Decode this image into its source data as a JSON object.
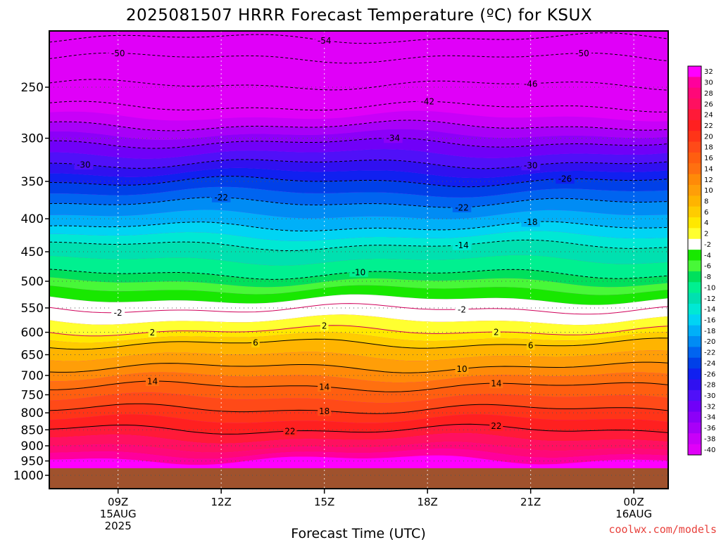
{
  "chart_data": {
    "type": "heatmap",
    "title": "2025081507 HRRR Forecast Temperature (ºC) for KSUX",
    "xlabel": "Forecast Time (UTC)",
    "ylabel": "",
    "x_ticks": [
      {
        "label": "09Z",
        "sub": [
          "15AUG",
          "2025"
        ],
        "hour": 9
      },
      {
        "label": "12Z",
        "sub": [],
        "hour": 12
      },
      {
        "label": "15Z",
        "sub": [],
        "hour": 15
      },
      {
        "label": "18Z",
        "sub": [],
        "hour": 18
      },
      {
        "label": "21Z",
        "sub": [],
        "hour": 21
      },
      {
        "label": "00Z",
        "sub": [
          "16AUG"
        ],
        "hour": 24
      }
    ],
    "xlim_hours": [
      7,
      25
    ],
    "y_ticks": [
      "250",
      "300",
      "350",
      "400",
      "450",
      "500",
      "550",
      "600",
      "650",
      "700",
      "750",
      "800",
      "850",
      "900",
      "950",
      "1000"
    ],
    "y_scale": "log-pressure",
    "ylim_hPa": [
      1000,
      200
    ],
    "surface_pressure_hPa": 975,
    "colorbar": {
      "labels": [
        "32",
        "30",
        "28",
        "26",
        "24",
        "22",
        "20",
        "18",
        "16",
        "14",
        "12",
        "10",
        "8",
        "6",
        "4",
        "2",
        "-2",
        "-4",
        "-6",
        "-8",
        "-10",
        "-12",
        "-14",
        "-16",
        "-18",
        "-20",
        "-22",
        "-24",
        "-26",
        "-28",
        "-30",
        "-32",
        "-34",
        "-36",
        "-38",
        "-40"
      ],
      "colors": [
        "#ff00ff",
        "#ff009c",
        "#ff0878",
        "#ff1060",
        "#ff1a38",
        "#ff2020",
        "#ff3418",
        "#ff4a18",
        "#ff5e10",
        "#ff7010",
        "#ff8a08",
        "#ff9e08",
        "#ffb400",
        "#ffcc00",
        "#ffe800",
        "#ffff30",
        "#ffffff",
        "#18e800",
        "#48f838",
        "#00e05c",
        "#00f090",
        "#00e0b0",
        "#00e8d4",
        "#00d4f4",
        "#00b0f8",
        "#008cf4",
        "#0064f0",
        "#0040e8",
        "#1020f0",
        "#3010f0",
        "#5010f8",
        "#7000f8",
        "#8c00f8",
        "#a800f8",
        "#c800f8",
        "#e000f8"
      ]
    },
    "contours": [
      {
        "temp": -54,
        "labels": [
          {
            "hour": 15,
            "text": "-54"
          }
        ]
      },
      {
        "temp": -50,
        "labels": [
          {
            "hour": 9,
            "text": "-50"
          },
          {
            "hour": 22.5,
            "text": "-50"
          }
        ]
      },
      {
        "temp": -46,
        "labels": [
          {
            "hour": 21,
            "text": "-46"
          }
        ]
      },
      {
        "temp": -42,
        "labels": [
          {
            "hour": 18,
            "text": "-42"
          }
        ]
      },
      {
        "temp": -38,
        "labels": []
      },
      {
        "temp": -34,
        "labels": [
          {
            "hour": 17,
            "text": "-34"
          }
        ]
      },
      {
        "temp": -30,
        "labels": [
          {
            "hour": 8,
            "text": "-30"
          },
          {
            "hour": 21,
            "text": "-30"
          }
        ]
      },
      {
        "temp": -26,
        "labels": [
          {
            "hour": 22,
            "text": "-26"
          }
        ]
      },
      {
        "temp": -22,
        "labels": [
          {
            "hour": 12,
            "text": "-22"
          },
          {
            "hour": 19,
            "text": "-22"
          }
        ]
      },
      {
        "temp": -18,
        "labels": [
          {
            "hour": 21,
            "text": "-18"
          }
        ]
      },
      {
        "temp": -14,
        "labels": [
          {
            "hour": 19,
            "text": "-14"
          }
        ]
      },
      {
        "temp": -10,
        "labels": [
          {
            "hour": 16,
            "text": "-10"
          }
        ]
      },
      {
        "temp": -2,
        "labels": [
          {
            "hour": 9,
            "text": "-2"
          },
          {
            "hour": 19,
            "text": "-2"
          }
        ]
      },
      {
        "temp": 2,
        "labels": [
          {
            "hour": 10,
            "text": "2"
          },
          {
            "hour": 15,
            "text": "2"
          },
          {
            "hour": 20,
            "text": "2"
          }
        ]
      },
      {
        "temp": 6,
        "labels": [
          {
            "hour": 13,
            "text": "6"
          },
          {
            "hour": 21,
            "text": "6"
          }
        ]
      },
      {
        "temp": 10,
        "labels": [
          {
            "hour": 19,
            "text": "10"
          }
        ]
      },
      {
        "temp": 14,
        "labels": [
          {
            "hour": 10,
            "text": "14"
          },
          {
            "hour": 15,
            "text": "14"
          },
          {
            "hour": 20,
            "text": "14"
          }
        ]
      },
      {
        "temp": 18,
        "labels": [
          {
            "hour": 15,
            "text": "18"
          }
        ]
      },
      {
        "temp": 22,
        "labels": [
          {
            "hour": 14,
            "text": "22"
          },
          {
            "hour": 20,
            "text": "22"
          }
        ]
      }
    ],
    "credit": "coolwx.com/models"
  }
}
